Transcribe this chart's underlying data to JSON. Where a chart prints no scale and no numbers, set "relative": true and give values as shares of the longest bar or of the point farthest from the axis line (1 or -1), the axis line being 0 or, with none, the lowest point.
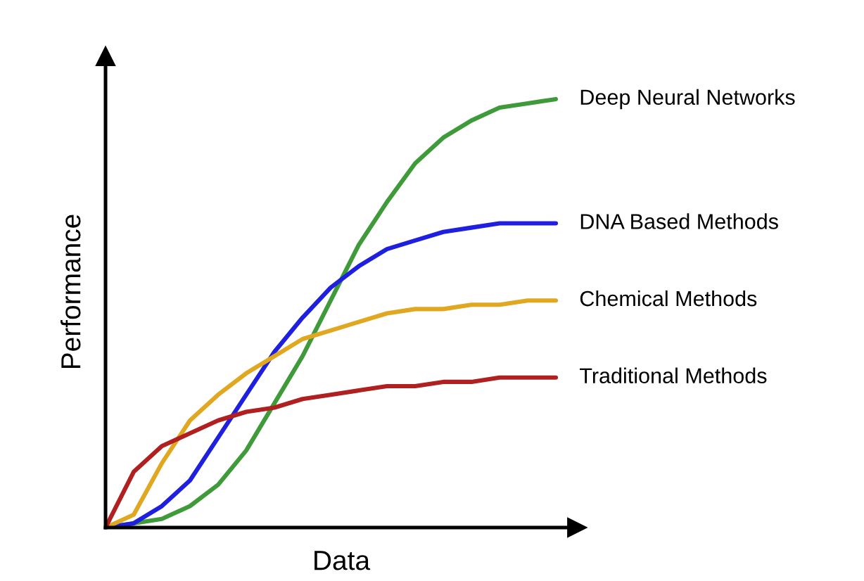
{
  "chart_data": {
    "type": "line",
    "relative": true,
    "xlabel": "Data",
    "ylabel": "Performance",
    "legend": false,
    "grid": false,
    "marker": "none",
    "line_style": "solid",
    "categories": [
      null,
      null,
      null,
      null,
      null,
      null,
      null,
      null,
      null,
      null,
      null,
      null,
      null,
      null,
      null,
      null,
      null
    ],
    "series": [
      {
        "name": "Deep Neural Networks",
        "color": "#3f9a3a",
        "values": [
          0,
          0.01,
          0.02,
          0.05,
          0.1,
          0.18,
          0.29,
          0.4,
          0.53,
          0.66,
          0.76,
          0.85,
          0.91,
          0.95,
          0.98,
          0.99,
          1
        ]
      },
      {
        "name": "DNA Based Methods",
        "color": "#1f1fe0",
        "values": [
          0,
          0.01,
          0.05,
          0.11,
          0.21,
          0.31,
          0.41,
          0.49,
          0.56,
          0.61,
          0.65,
          0.67,
          0.69,
          0.7,
          0.71,
          0.71,
          0.71
        ]
      },
      {
        "name": "Chemical Methods",
        "color": "#e0a820",
        "values": [
          0,
          0.03,
          0.15,
          0.25,
          0.31,
          0.36,
          0.4,
          0.44,
          0.46,
          0.48,
          0.5,
          0.51,
          0.51,
          0.52,
          0.52,
          0.53,
          0.53
        ]
      },
      {
        "name": "Traditional Methods",
        "color": "#b02020",
        "values": [
          0,
          0.13,
          0.19,
          0.22,
          0.25,
          0.27,
          0.28,
          0.3,
          0.31,
          0.32,
          0.33,
          0.33,
          0.34,
          0.34,
          0.35,
          0.35,
          0.35
        ]
      }
    ]
  }
}
